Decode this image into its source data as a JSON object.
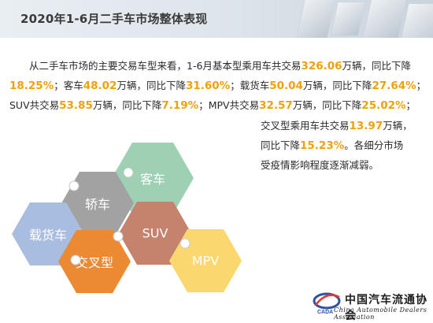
{
  "header": {
    "title": "2020年1-6月二手车市场整体表现"
  },
  "paragraph": {
    "line1": [
      "从二手车市场的主要交易车型来看，1-6月基本型乘用车共交易",
      "326.06",
      "万辆，同比下降"
    ],
    "line2": [
      "18.25%",
      "；客车",
      "48.02",
      "万辆，同比下降",
      "31.60%",
      "；载货车",
      "50.04",
      "万辆，同比下降",
      "27.64%",
      "；"
    ],
    "line3": [
      "SUV共交易",
      "53.85",
      "万辆，同比下降",
      "7.19%",
      "；MPV共交易",
      "32.57",
      "万辆，同比下降",
      "25.02%",
      "；"
    ],
    "right1": [
      "交叉型乘用车共交易",
      "13.97",
      "万辆，"
    ],
    "right2": [
      "同比下降",
      "15.23%",
      "。各细分市场"
    ],
    "right3": "受疫情影响程度逐渐减弱。"
  },
  "hexagons": [
    {
      "label": "客车",
      "color": "#9ed0b3"
    },
    {
      "label": "轿车",
      "color": "#a2a2a2"
    },
    {
      "label": "载货车",
      "color": "#a8bde0"
    },
    {
      "label": "SUV",
      "color": "#c5836d"
    },
    {
      "label": "交叉型",
      "color": "#ec8a34"
    },
    {
      "label": "MPV",
      "color": "#fbd86f"
    }
  ],
  "logo": {
    "abbr": "CADA",
    "name_cn": "中国汽车流通协会",
    "name_en": "China Automobile Dealers Association"
  },
  "colors": {
    "highlight": "#f0a10a",
    "text": "#2a2a2a"
  }
}
